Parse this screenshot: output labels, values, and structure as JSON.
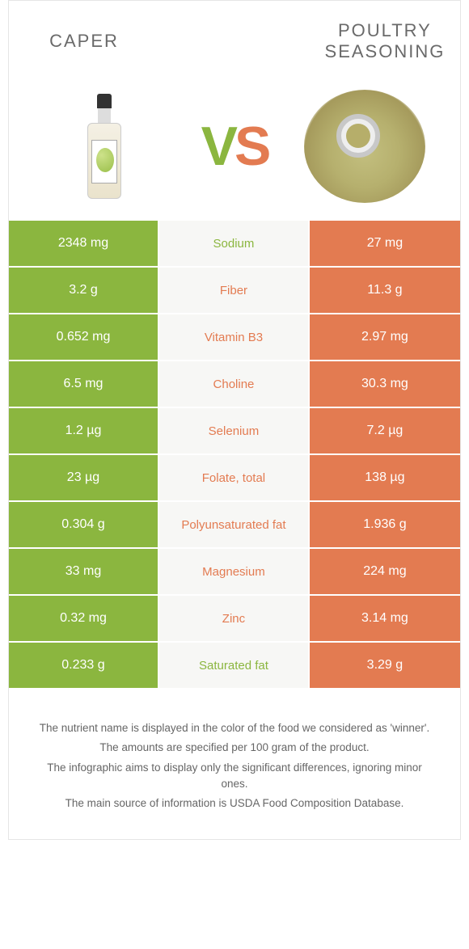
{
  "colors": {
    "left": "#8bb63f",
    "right": "#e37b51",
    "mid_bg": "#f7f7f5",
    "page_bg": "#ffffff",
    "text": "#555555"
  },
  "header": {
    "left_title": "CAPER",
    "right_title": "POULTRY SEASONING",
    "vs_v": "V",
    "vs_s": "S"
  },
  "rows": [
    {
      "left": "2348 mg",
      "label": "Sodium",
      "right": "27 mg",
      "winner": "left"
    },
    {
      "left": "3.2 g",
      "label": "Fiber",
      "right": "11.3 g",
      "winner": "right"
    },
    {
      "left": "0.652 mg",
      "label": "Vitamin B3",
      "right": "2.97 mg",
      "winner": "right"
    },
    {
      "left": "6.5 mg",
      "label": "Choline",
      "right": "30.3 mg",
      "winner": "right"
    },
    {
      "left": "1.2 µg",
      "label": "Selenium",
      "right": "7.2 µg",
      "winner": "right"
    },
    {
      "left": "23 µg",
      "label": "Folate, total",
      "right": "138 µg",
      "winner": "right"
    },
    {
      "left": "0.304 g",
      "label": "Polyunsaturated fat",
      "right": "1.936 g",
      "winner": "right"
    },
    {
      "left": "33 mg",
      "label": "Magnesium",
      "right": "224 mg",
      "winner": "right"
    },
    {
      "left": "0.32 mg",
      "label": "Zinc",
      "right": "3.14 mg",
      "winner": "right"
    },
    {
      "left": "0.233 g",
      "label": "Saturated fat",
      "right": "3.29 g",
      "winner": "left"
    }
  ],
  "footer": {
    "l1": "The nutrient name is displayed in the color of the food we considered as 'winner'.",
    "l2": "The amounts are specified per 100 gram of the product.",
    "l3": "The infographic aims to display only the significant differences, ignoring minor ones.",
    "l4": "The main source of information is USDA Food Composition Database."
  }
}
